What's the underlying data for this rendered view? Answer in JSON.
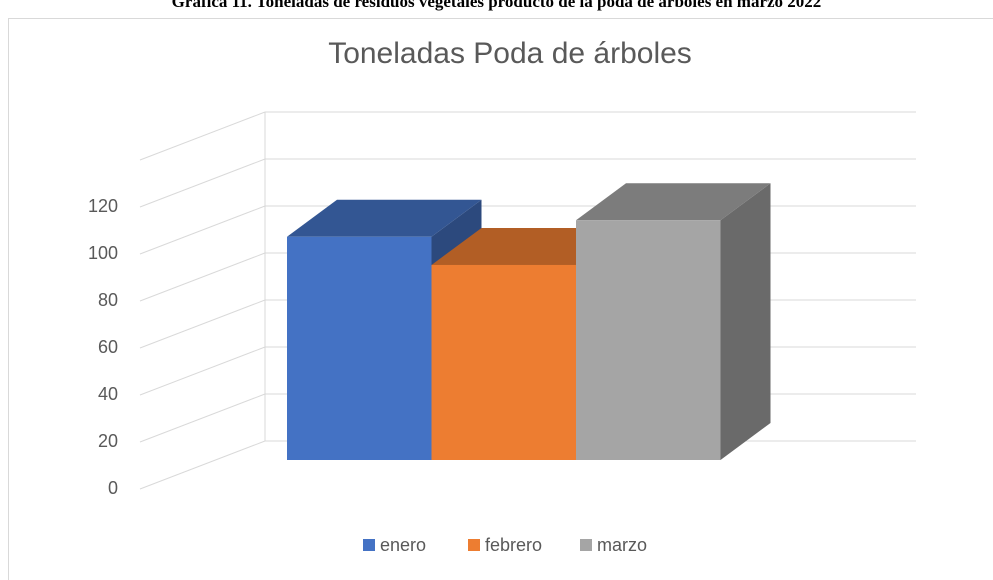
{
  "caption": "Gráfica 11. Toneladas de residuos vegetales producto de la poda de árboles en marzo 2022",
  "chart_data": {
    "type": "bar3d",
    "title": "Toneladas Poda de árboles",
    "series": [
      {
        "name": "enero",
        "color": "#4472c4",
        "values": [
          95
        ]
      },
      {
        "name": "febrero",
        "color": "#ed7d31",
        "values": [
          83
        ]
      },
      {
        "name": "marzo",
        "color": "#a5a5a5",
        "values": [
          102
        ]
      }
    ],
    "ylim": [
      0,
      140
    ],
    "yticks": [
      0,
      20,
      40,
      60,
      80,
      100,
      120
    ],
    "grid": true,
    "legend": "bottom"
  }
}
